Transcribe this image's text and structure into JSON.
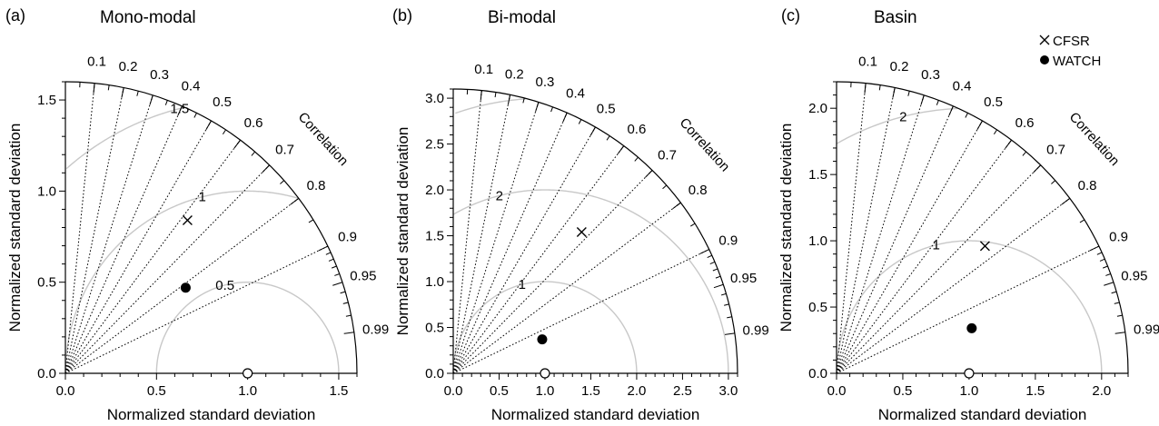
{
  "chart_data": [
    {
      "type": "scatter",
      "panel_tag": "(a)",
      "title": "Mono-modal",
      "xlabel": "Normalized standard deviation",
      "ylabel": "Normalized standard deviation",
      "arc_label": "Correlation",
      "max_sd": 1.6,
      "sd_ticks": [
        0.0,
        0.5,
        1.0,
        1.5
      ],
      "sd_tick_labels": [
        "0.0",
        "0.5",
        "1.0",
        "1.5"
      ],
      "corr_ticks": [
        0.1,
        0.2,
        0.3,
        0.4,
        0.5,
        0.6,
        0.7,
        0.8,
        0.9,
        0.95,
        0.99
      ],
      "corr_tick_labels": [
        "0.1",
        "0.2",
        "0.3",
        "0.4",
        "0.5",
        "0.6",
        "0.7",
        "0.8",
        "0.9",
        "0.95",
        "0.99"
      ],
      "rms_contours": [
        0.5,
        1.0,
        1.5
      ],
      "rms_labels": [
        "0.5",
        "1",
        "1.5"
      ],
      "reference_sd": 1.0,
      "series": [
        {
          "name": "CFSR",
          "marker": "x",
          "x": 0.67,
          "y": 0.84
        },
        {
          "name": "WATCH",
          "marker": "filled-circle",
          "x": 0.66,
          "y": 0.47
        }
      ]
    },
    {
      "type": "scatter",
      "panel_tag": "(b)",
      "title": "Bi-modal",
      "xlabel": "Normalized standard deviation",
      "ylabel": "Normalized standard deviation",
      "arc_label": "Correlation",
      "max_sd": 3.1,
      "sd_ticks": [
        0.0,
        0.5,
        1.0,
        1.5,
        2.0,
        2.5,
        3.0
      ],
      "sd_tick_labels": [
        "0.0",
        "0.5",
        "1.0",
        "1.5",
        "2.0",
        "2.5",
        "3.0"
      ],
      "corr_ticks": [
        0.1,
        0.2,
        0.3,
        0.4,
        0.5,
        0.6,
        0.7,
        0.8,
        0.9,
        0.95,
        0.99
      ],
      "corr_tick_labels": [
        "0.1",
        "0.2",
        "0.3",
        "0.4",
        "0.5",
        "0.6",
        "0.7",
        "0.8",
        "0.9",
        "0.95",
        "0.99"
      ],
      "rms_contours": [
        1.0,
        2.0,
        3.0
      ],
      "rms_labels": [
        "1",
        "2",
        ""
      ],
      "reference_sd": 1.0,
      "series": [
        {
          "name": "CFSR",
          "marker": "x",
          "x": 1.4,
          "y": 1.54
        },
        {
          "name": "WATCH",
          "marker": "filled-circle",
          "x": 0.97,
          "y": 0.37
        }
      ]
    },
    {
      "type": "scatter",
      "panel_tag": "(c)",
      "title": "Basin",
      "xlabel": "Normalized standard deviation",
      "ylabel": "Normalized standard deviation",
      "arc_label": "Correlation",
      "max_sd": 2.2,
      "sd_ticks": [
        0.0,
        0.5,
        1.0,
        1.5,
        2.0
      ],
      "sd_tick_labels": [
        "0.0",
        "0.5",
        "1.0",
        "1.5",
        "2.0"
      ],
      "corr_ticks": [
        0.1,
        0.2,
        0.3,
        0.4,
        0.5,
        0.6,
        0.7,
        0.8,
        0.9,
        0.95,
        0.99
      ],
      "corr_tick_labels": [
        "0.1",
        "0.2",
        "0.3",
        "0.4",
        "0.5",
        "0.6",
        "0.7",
        "0.8",
        "0.9",
        "0.95",
        "0.99"
      ],
      "rms_contours": [
        1.0,
        2.0
      ],
      "rms_labels": [
        "1",
        "2"
      ],
      "reference_sd": 1.0,
      "series": [
        {
          "name": "CFSR",
          "marker": "x",
          "x": 1.12,
          "y": 0.96
        },
        {
          "name": "WATCH",
          "marker": "filled-circle",
          "x": 1.02,
          "y": 0.34
        }
      ],
      "legend": {
        "placement": "top-right",
        "items": [
          {
            "name": "CFSR",
            "marker": "x"
          },
          {
            "name": "WATCH",
            "marker": "filled-circle"
          }
        ]
      }
    }
  ]
}
